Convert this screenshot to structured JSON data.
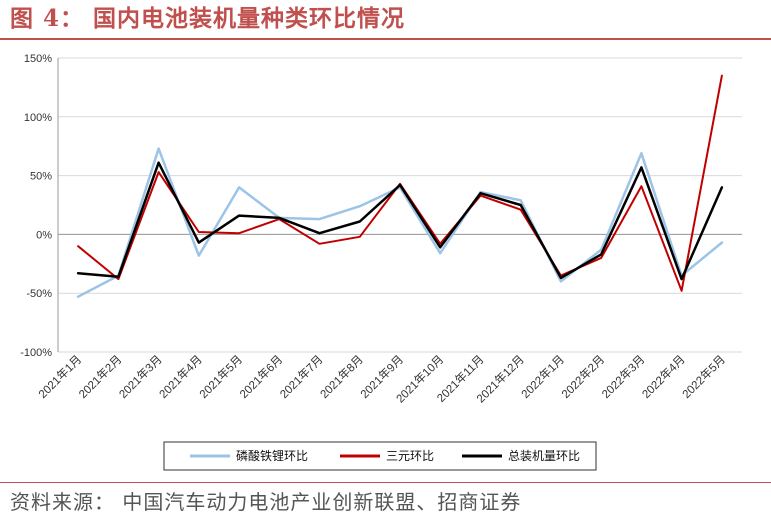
{
  "header": {
    "title": "图 4： 国内电池装机量种类环比情况"
  },
  "footer": {
    "source": "资料来源： 中国汽车动力电池产业创新联盟、招商证券"
  },
  "chart_data": {
    "type": "line",
    "title": "",
    "xlabel": "",
    "ylabel": "",
    "ylim": [
      -100,
      150
    ],
    "yticks": [
      -100,
      -50,
      0,
      50,
      100,
      150
    ],
    "ytick_labels": [
      "-100%",
      "-50%",
      "0%",
      "50%",
      "100%",
      "150%"
    ],
    "grid": "horizontal",
    "legend_position": "bottom",
    "categories": [
      "2021年1月",
      "2021年2月",
      "2021年3月",
      "2021年4月",
      "2021年5月",
      "2021年6月",
      "2021年7月",
      "2021年8月",
      "2021年9月",
      "2021年10月",
      "2021年11月",
      "2021年12月",
      "2022年1月",
      "2022年2月",
      "2022年3月",
      "2022年4月",
      "2022年5月"
    ],
    "series": [
      {
        "name": "磷酸铁锂环比",
        "color": "#9dc3e6",
        "width": 2.5,
        "values": [
          -53,
          -35,
          73,
          -18,
          40,
          14,
          13,
          24,
          40,
          -16,
          36,
          29,
          -40,
          -13,
          69,
          -35,
          -7
        ]
      },
      {
        "name": "三元环比",
        "color": "#c00000",
        "width": 2,
        "values": [
          -10,
          -38,
          53,
          2,
          1,
          13,
          -8,
          -2,
          43,
          -8,
          33,
          21,
          -35,
          -20,
          41,
          -48,
          135
        ]
      },
      {
        "name": "总装机量环比",
        "color": "#000000",
        "width": 2.5,
        "values": [
          -33,
          -36,
          61,
          -7,
          16,
          14,
          1,
          11,
          42,
          -11,
          35,
          25,
          -37,
          -17,
          57,
          -38,
          40
        ]
      }
    ]
  }
}
